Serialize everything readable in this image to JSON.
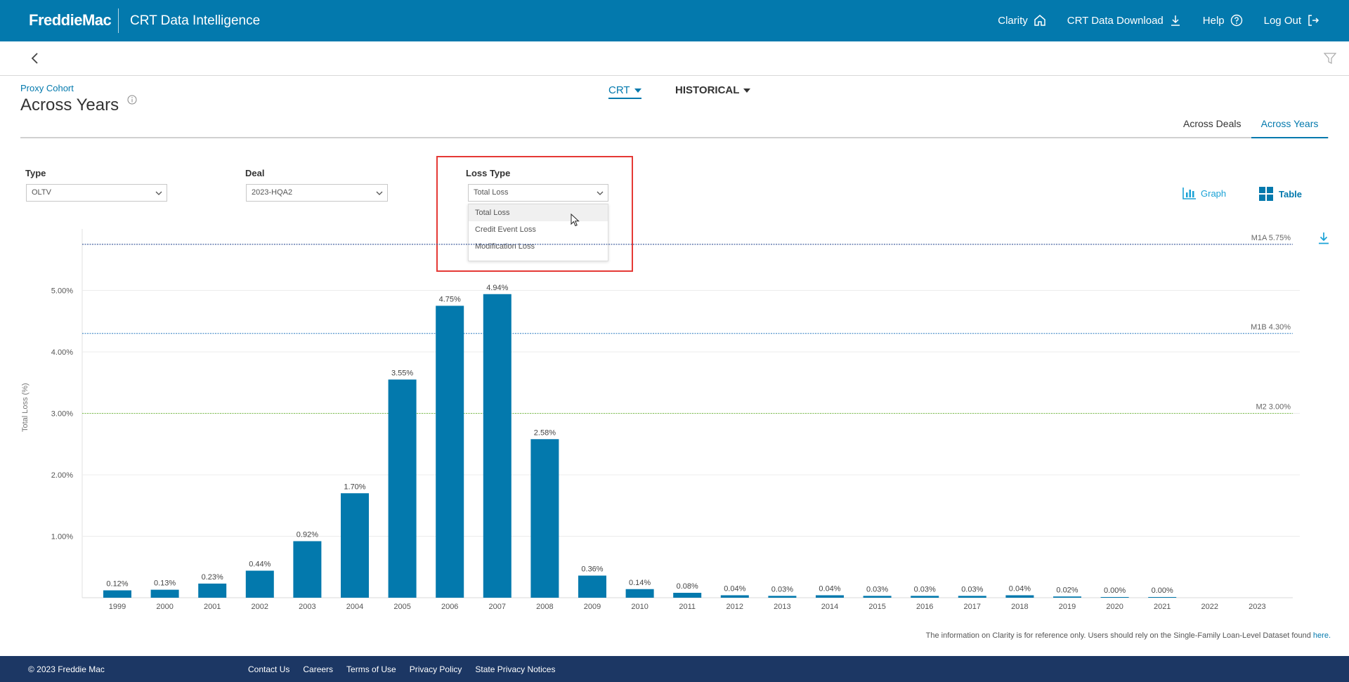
{
  "header": {
    "logo": "FreddieMac",
    "app_title": "CRT Data Intelligence",
    "nav": [
      {
        "label": "Clarity",
        "icon": "home-icon"
      },
      {
        "label": "CRT Data Download",
        "icon": "download-icon"
      },
      {
        "label": "Help",
        "icon": "help-icon"
      },
      {
        "label": "Log Out",
        "icon": "logout-icon"
      }
    ]
  },
  "page": {
    "crumb": "Proxy Cohort",
    "title": "Across Years",
    "crt_dropdown": "CRT",
    "historical_dropdown": "HISTORICAL",
    "tabs": [
      "Across Deals",
      "Across Years"
    ],
    "active_tab": "Across Years"
  },
  "filters": {
    "type_label": "Type",
    "type_value": "OLTV",
    "deal_label": "Deal",
    "deal_value": "2023-HQA2",
    "loss_label": "Loss Type",
    "loss_value": "Total Loss",
    "loss_options": [
      "Total Loss",
      "Credit Event Loss",
      "Modification Loss"
    ]
  },
  "view": {
    "graph_label": "Graph",
    "table_label": "Table"
  },
  "chart_data": {
    "type": "bar",
    "ylabel": "Total Loss (%)",
    "ylim": [
      0,
      6
    ],
    "yticks": [
      "1.00%",
      "2.00%",
      "3.00%",
      "4.00%",
      "5.00%"
    ],
    "categories": [
      "1999",
      "2000",
      "2001",
      "2002",
      "2003",
      "2004",
      "2005",
      "2006",
      "2007",
      "2008",
      "2009",
      "2010",
      "2011",
      "2012",
      "2013",
      "2014",
      "2015",
      "2016",
      "2017",
      "2018",
      "2019",
      "2020",
      "2021",
      "2022",
      "2023"
    ],
    "values": [
      0.12,
      0.13,
      0.23,
      0.44,
      0.92,
      1.7,
      3.55,
      4.75,
      4.94,
      2.58,
      0.36,
      0.14,
      0.08,
      0.04,
      0.03,
      0.04,
      0.03,
      0.03,
      0.03,
      0.04,
      0.02,
      0.0,
      0.0,
      null,
      null
    ],
    "labels": [
      "0.12%",
      "0.13%",
      "0.23%",
      "0.44%",
      "0.92%",
      "1.70%",
      "3.55%",
      "4.75%",
      "4.94%",
      "2.58%",
      "0.36%",
      "0.14%",
      "0.08%",
      "0.04%",
      "0.03%",
      "0.04%",
      "0.03%",
      "0.03%",
      "0.03%",
      "0.04%",
      "0.02%",
      "0.00%",
      "0.00%",
      "",
      ""
    ],
    "bar_color": "#0379ad",
    "reference_lines": [
      {
        "label": "M1A 5.75%",
        "value": 5.75,
        "color": "#1c3f8a"
      },
      {
        "label": "M1B 4.30%",
        "value": 4.3,
        "color": "#2b7bc0"
      },
      {
        "label": "M2 3.00%",
        "value": 3.0,
        "color": "#7cc04a"
      }
    ],
    "grid": true
  },
  "disclaimer": {
    "text": "The information on Clarity is for reference only. Users should rely on the Single-Family Loan-Level Dataset found ",
    "link": "here."
  },
  "footer": {
    "copyright": "© 2023 Freddie Mac",
    "links": [
      "Contact Us",
      "Careers",
      "Terms of Use",
      "Privacy Policy",
      "State Privacy Notices"
    ]
  }
}
